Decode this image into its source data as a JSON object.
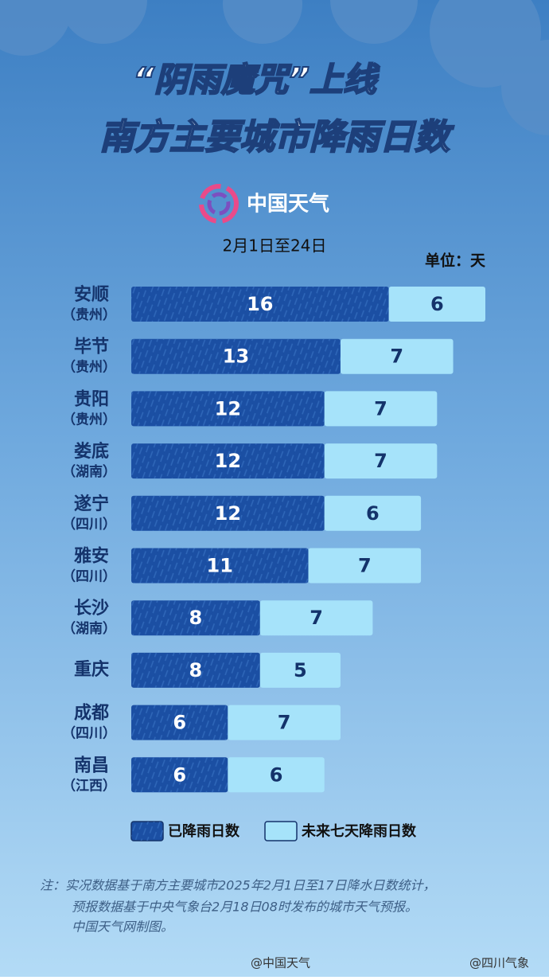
{
  "chart_data": {
    "type": "bar",
    "orientation": "horizontal",
    "stacked": true,
    "title_lines": [
      "“阴雨魔咒”上线",
      "南方主要城市降雨日数"
    ],
    "logo_text": "中国天气",
    "subtitle": "2月1日至24日",
    "unit_label": "单位：天",
    "categories": [
      "安顺",
      "毕节",
      "贵阳",
      "娄底",
      "遂宁",
      "雅安",
      "长沙",
      "重庆",
      "成都",
      "南昌"
    ],
    "category_regions": [
      "（贵州）",
      "（贵州）",
      "（贵州）",
      "（湖南）",
      "（四川）",
      "（四川）",
      "（湖南）",
      null,
      "（四川）",
      "（江西）"
    ],
    "series": [
      {
        "name": "已降雨日数",
        "color": "#1b4fa3",
        "values": [
          16,
          13,
          12,
          12,
          12,
          11,
          8,
          8,
          6,
          6
        ]
      },
      {
        "name": "未来七天降雨日数",
        "color": "#a6e3fa",
        "values": [
          6,
          7,
          7,
          7,
          6,
          7,
          7,
          5,
          7,
          6
        ]
      }
    ],
    "notes": [
      "注：实况数据基于南方主要城市2025年2月1日至17日降水日数统计，",
      "预报数据基于中央气象台2月18日08时发布的城市天气预报。",
      "中国天气网制图。"
    ],
    "credits": [
      "@中国天气",
      "@四川气象"
    ]
  }
}
